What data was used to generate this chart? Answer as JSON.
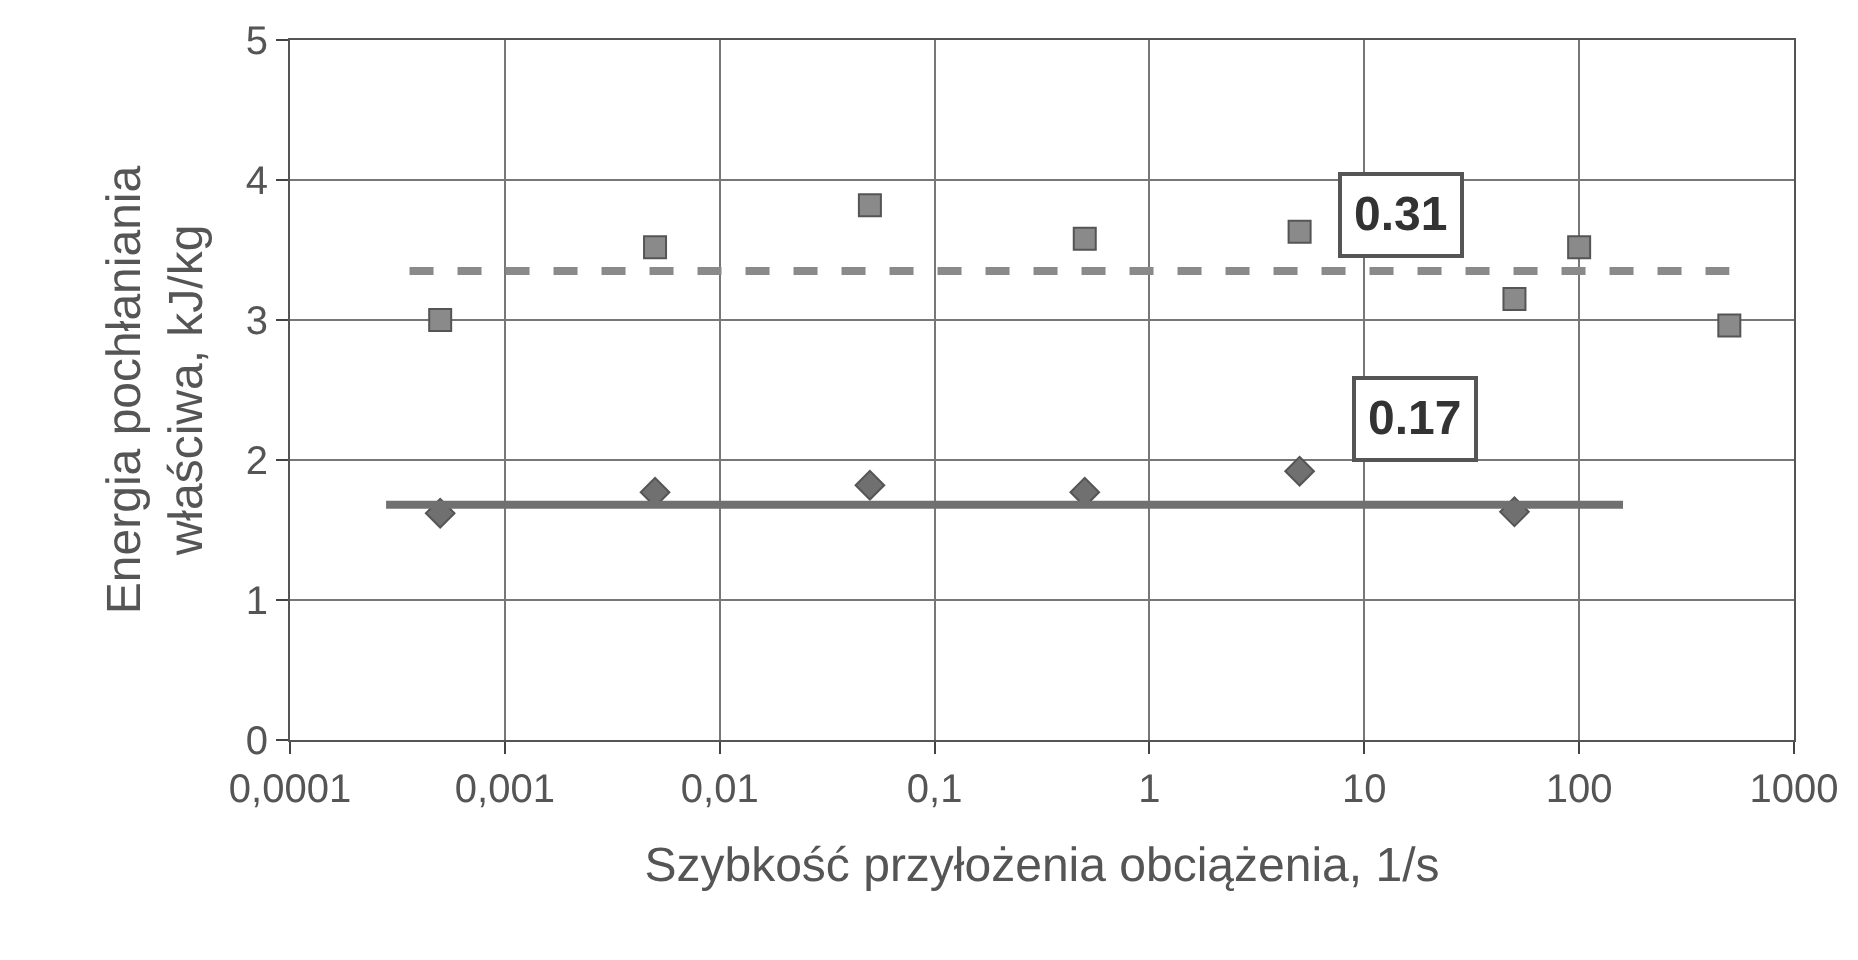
{
  "chart_data": {
    "type": "scatter",
    "xlabel": "Szybkość przyłożenia obciążenia, 1/s",
    "ylabel": "Energia pochłaniania\nwłaściwa, kJ/kg",
    "log": "x",
    "grid": true,
    "xlim": [
      0.0001,
      1000
    ],
    "xticks": [
      {
        "value": 0.0001,
        "label": "0,0001"
      },
      {
        "value": 0.001,
        "label": "0,001"
      },
      {
        "value": 0.01,
        "label": "0,01"
      },
      {
        "value": 0.1,
        "label": "0,1"
      },
      1,
      10,
      100,
      1000
    ],
    "ylim": [
      0,
      5
    ],
    "yticks": [
      0,
      1,
      2,
      3,
      4,
      5
    ],
    "series": [
      {
        "type": "scatter",
        "marker": "square",
        "color": "#8a8a8a",
        "x": [
          0.0005,
          0.005,
          0.05,
          0.5,
          5,
          50,
          100,
          500
        ],
        "values": [
          3.0,
          3.52,
          3.82,
          3.58,
          3.63,
          3.15,
          3.52,
          2.96
        ]
      },
      {
        "type": "scatter",
        "marker": "diamond",
        "color": "#707070",
        "x": [
          0.0005,
          0.005,
          0.05,
          0.5,
          5,
          50
        ],
        "values": [
          1.62,
          1.77,
          1.82,
          1.77,
          1.92,
          1.63
        ]
      },
      {
        "type": "line",
        "marker": "none",
        "line_style": "dashed",
        "color": "#8a8a8a",
        "x": [
          0.00036,
          500
        ],
        "values": [
          3.35,
          3.35
        ]
      },
      {
        "type": "line",
        "marker": "none",
        "line_style": "solid",
        "color": "#707070",
        "x": [
          0.00028,
          160
        ],
        "values": [
          1.68,
          1.68
        ]
      }
    ],
    "annotations": [
      "0.31",
      "0.17"
    ]
  }
}
